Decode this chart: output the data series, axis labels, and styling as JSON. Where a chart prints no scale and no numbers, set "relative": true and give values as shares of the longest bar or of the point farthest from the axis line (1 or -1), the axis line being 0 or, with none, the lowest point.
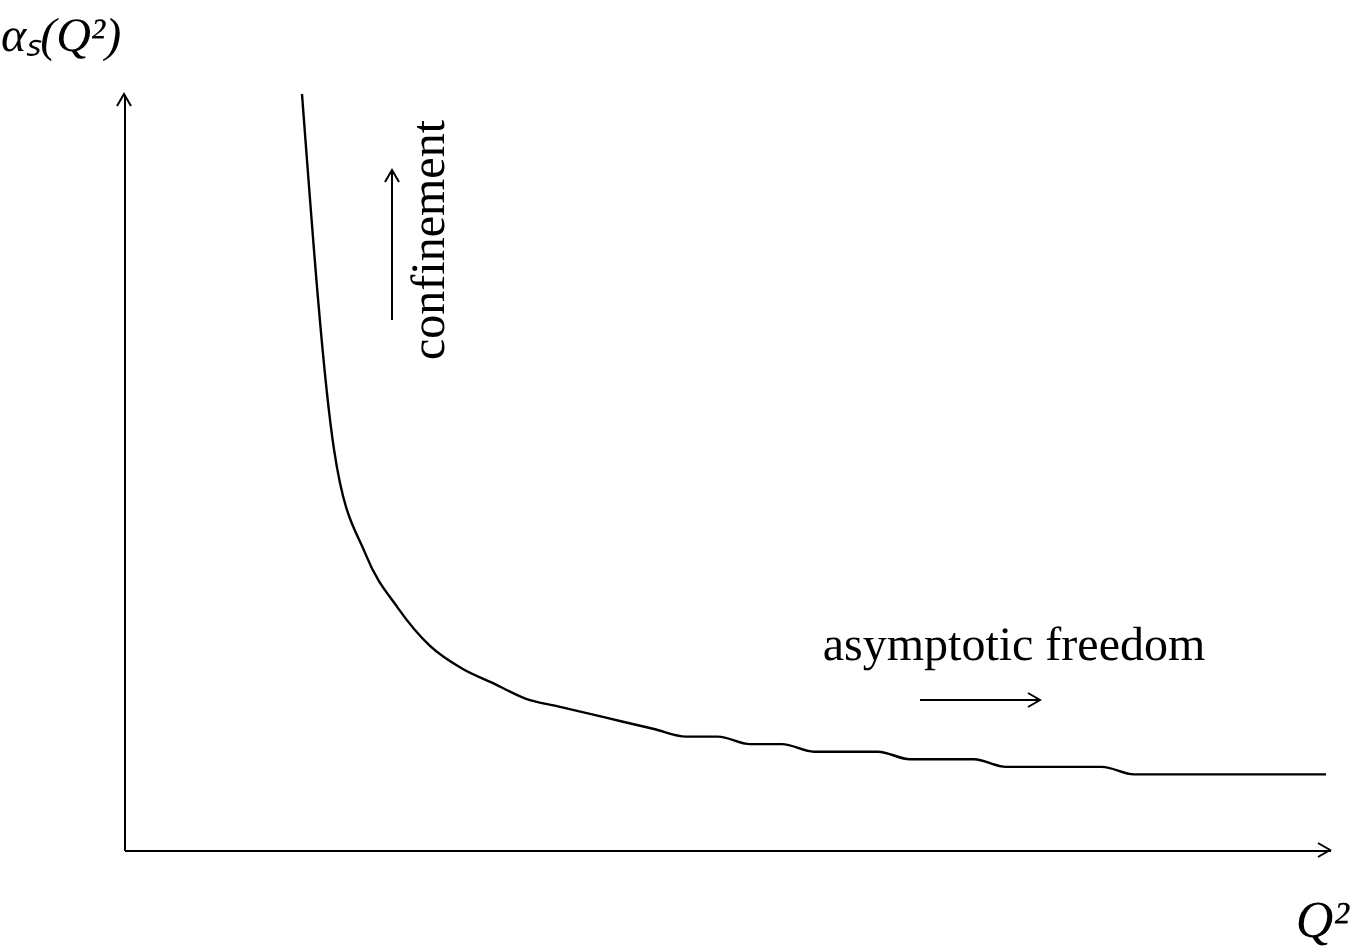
{
  "chart_data": {
    "type": "line",
    "relative": true,
    "xlabel": "Q²",
    "ylabel": "αₛ(Q²)",
    "annotations": [
      "confinement",
      "asymptotic freedom"
    ],
    "categories": [
      null,
      null,
      null,
      null,
      null,
      null,
      null,
      null,
      null,
      null,
      null,
      null,
      null,
      null,
      null,
      null,
      null,
      null,
      null,
      null,
      null,
      null,
      null,
      null,
      null,
      null,
      null,
      null,
      null,
      null,
      null,
      null,
      null
    ],
    "series": [
      {
        "color": "#000000",
        "values": [
          1,
          0.53,
          0.39,
          0.32,
          0.27,
          0.24,
          0.22,
          0.2,
          0.19,
          0.18,
          0.17,
          0.16,
          0.15,
          0.15,
          0.14,
          0.14,
          0.13,
          0.13,
          0.13,
          0.12,
          0.12,
          0.12,
          0.11,
          0.11,
          0.11,
          0.11,
          0.1,
          0.1,
          0.1,
          0.1,
          0.1,
          0.1,
          0.1
        ]
      }
    ]
  }
}
